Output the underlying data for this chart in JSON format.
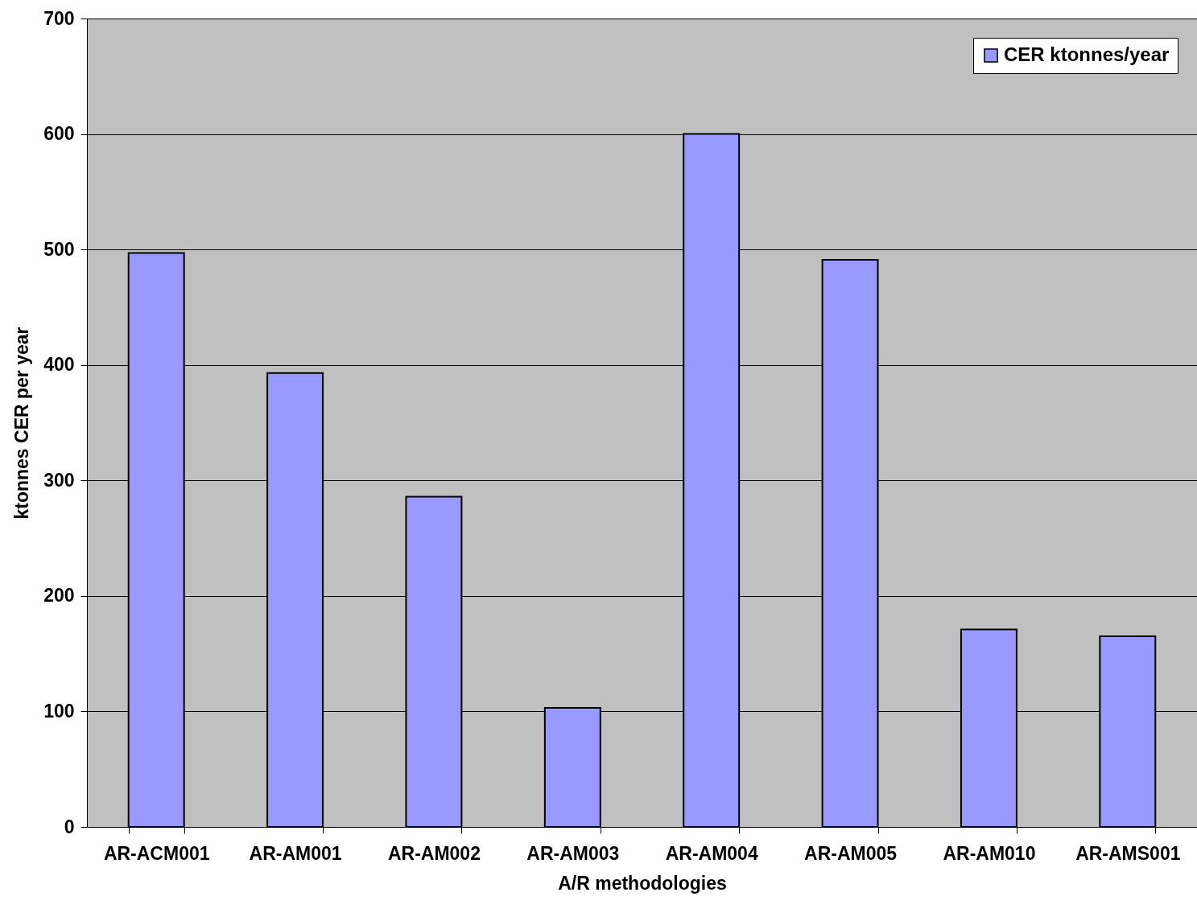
{
  "chart_data": {
    "type": "bar",
    "xlabel": "A/R methodologies",
    "ylabel": "ktonnes CER per year",
    "categories": [
      "AR-ACM001",
      "AR-AM001",
      "AR-AM002",
      "AR-AM003",
      "AR-AM004",
      "AR-AM005",
      "AR-AM010",
      "AR-AMS001"
    ],
    "series": [
      {
        "name": "CER ktonnes/year",
        "color": "#9999ff",
        "values": [
          497,
          393,
          286,
          103,
          600,
          491,
          171,
          165
        ]
      }
    ],
    "ylim": [
      0,
      700
    ],
    "yticks": [
      0,
      100,
      200,
      300,
      400,
      500,
      600,
      700
    ],
    "grid": "y",
    "legend": "top right"
  }
}
